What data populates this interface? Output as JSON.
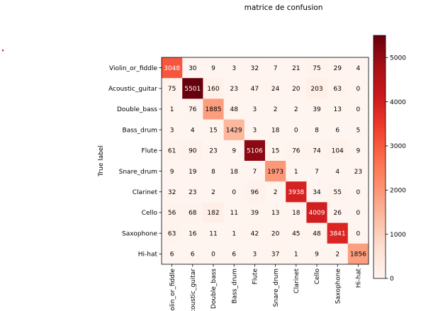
{
  "chart_data": {
    "type": "heatmap",
    "title": "matrice de confusion",
    "ylabel": "True label",
    "xlabel": "",
    "labels": [
      "Violin_or_fiddle",
      "Acoustic_guitar",
      "Double_bass",
      "Bass_drum",
      "Flute",
      "Snare_drum",
      "Clarinet",
      "Cello",
      "Saxophone",
      "Hi-hat"
    ],
    "matrix": [
      [
        3048,
        30,
        9,
        3,
        32,
        7,
        21,
        75,
        29,
        4
      ],
      [
        75,
        5501,
        160,
        23,
        47,
        24,
        20,
        203,
        63,
        0
      ],
      [
        1,
        76,
        1885,
        48,
        3,
        2,
        2,
        39,
        13,
        0
      ],
      [
        3,
        4,
        15,
        1429,
        3,
        18,
        0,
        8,
        6,
        5
      ],
      [
        61,
        90,
        23,
        9,
        5106,
        15,
        76,
        74,
        104,
        9
      ],
      [
        9,
        19,
        8,
        18,
        7,
        1973,
        1,
        7,
        4,
        23
      ],
      [
        32,
        23,
        2,
        0,
        96,
        2,
        3938,
        34,
        55,
        0
      ],
      [
        56,
        68,
        182,
        11,
        39,
        13,
        18,
        4009,
        26,
        0
      ],
      [
        63,
        16,
        11,
        1,
        42,
        20,
        45,
        48,
        3841,
        0
      ],
      [
        6,
        6,
        0,
        6,
        3,
        37,
        1,
        9,
        2,
        1856
      ]
    ],
    "colormap": "Reds",
    "vmin": 0,
    "vmax": 5501,
    "colorbar_ticks": [
      0,
      1000,
      2000,
      3000,
      4000,
      5000
    ]
  }
}
